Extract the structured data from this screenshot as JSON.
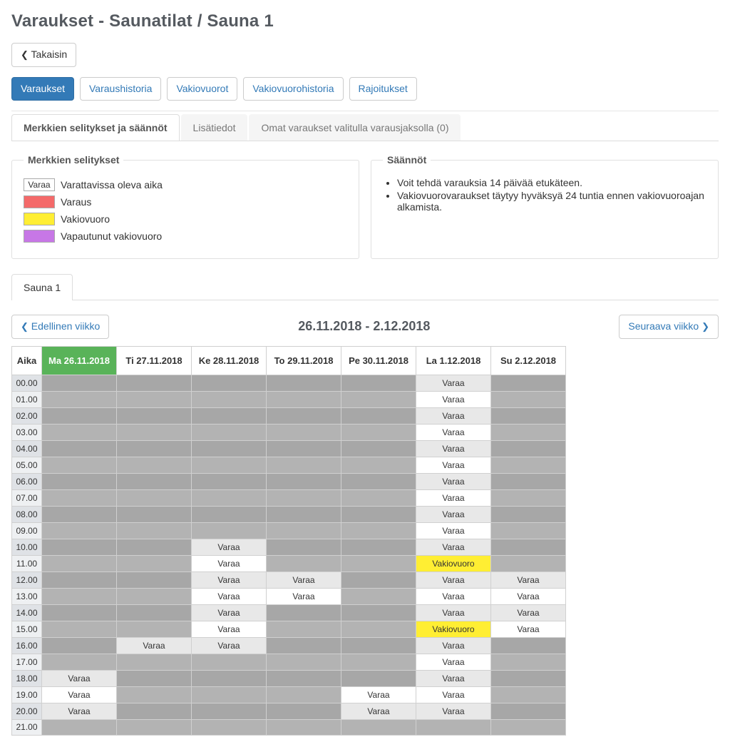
{
  "page_title": "Varaukset - Saunatilat / Sauna 1",
  "back_label": "Takaisin",
  "nav_tabs": [
    {
      "id": "varaukset",
      "label": "Varaukset",
      "active": true
    },
    {
      "id": "varaushistoria",
      "label": "Varaushistoria",
      "active": false
    },
    {
      "id": "vakiovuorot",
      "label": "Vakiovuorot",
      "active": false
    },
    {
      "id": "vakiovuorohistoria",
      "label": "Vakiovuorohistoria",
      "active": false
    },
    {
      "id": "rajoitukset",
      "label": "Rajoitukset",
      "active": false
    }
  ],
  "sub_tabs": [
    {
      "id": "legend",
      "label": "Merkkien selitykset ja säännöt",
      "active": true
    },
    {
      "id": "lisatiedot",
      "label": "Lisätiedot",
      "active": false
    },
    {
      "id": "omat",
      "label": "Omat varaukset valitulla varausjaksolla (0)",
      "active": false
    }
  ],
  "legend": {
    "title": "Merkkien selitykset",
    "items": [
      {
        "color": "#ffffff",
        "text_in_swatch": "Varaa",
        "label": "Varattavissa oleva aika"
      },
      {
        "color": "#f46a6a",
        "text_in_swatch": "",
        "label": "Varaus"
      },
      {
        "color": "#ffee33",
        "text_in_swatch": "",
        "label": "Vakiovuoro"
      },
      {
        "color": "#c777e6",
        "text_in_swatch": "",
        "label": "Vapautunut vakiovuoro"
      }
    ]
  },
  "rules": {
    "title": "Säännöt",
    "items": [
      "Voit tehdä varauksia 14 päivää etukäteen.",
      "Vakiovuorovaraukset täytyy hyväksyä 24 tuntia ennen vakiovuoroajan alkamista."
    ]
  },
  "resource_tab": "Sauna 1",
  "prev_week": "Edellinen viikko",
  "next_week": "Seuraava viikko",
  "week_range": "26.11.2018 - 2.12.2018",
  "slot_labels": {
    "avail": "Varaa",
    "vakio": "Vakiovuoro"
  },
  "colors": {
    "blocked": "#b3b3b3",
    "blocked_shaded": "#a7a7a7",
    "avail": "#ffffff",
    "avail_shaded": "#e8e8e8",
    "vakio": "#ffee33",
    "time_bg": "#eef0f2",
    "time_bg_shaded": "#dfe2e6",
    "current_day_header": "#59b359"
  },
  "schedule": {
    "time_header": "Aika",
    "days": [
      {
        "id": "mon",
        "label": "Ma 26.11.2018",
        "current": true
      },
      {
        "id": "tue",
        "label": "Ti 27.11.2018",
        "current": false
      },
      {
        "id": "wed",
        "label": "Ke 28.11.2018",
        "current": false
      },
      {
        "id": "thu",
        "label": "To 29.11.2018",
        "current": false
      },
      {
        "id": "fri",
        "label": "Pe 30.11.2018",
        "current": false
      },
      {
        "id": "sat",
        "label": "La 1.12.2018",
        "current": false
      },
      {
        "id": "sun",
        "label": "Su 2.12.2018",
        "current": false
      }
    ],
    "hours": [
      "00.00",
      "01.00",
      "02.00",
      "03.00",
      "04.00",
      "05.00",
      "06.00",
      "07.00",
      "08.00",
      "09.00",
      "10.00",
      "11.00",
      "12.00",
      "13.00",
      "14.00",
      "15.00",
      "16.00",
      "17.00",
      "18.00",
      "19.00",
      "20.00",
      "21.00"
    ],
    "cells": {
      "mon": [
        "b",
        "b",
        "b",
        "b",
        "b",
        "b",
        "b",
        "b",
        "b",
        "b",
        "b",
        "b",
        "b",
        "b",
        "b",
        "b",
        "b",
        "b",
        "a",
        "a",
        "a",
        "b"
      ],
      "tue": [
        "b",
        "b",
        "b",
        "b",
        "b",
        "b",
        "b",
        "b",
        "b",
        "b",
        "b",
        "b",
        "b",
        "b",
        "b",
        "b",
        "a",
        "b",
        "b",
        "b",
        "b",
        "b"
      ],
      "wed": [
        "b",
        "b",
        "b",
        "b",
        "b",
        "b",
        "b",
        "b",
        "b",
        "b",
        "a",
        "a",
        "a",
        "a",
        "a",
        "a",
        "a",
        "b",
        "b",
        "b",
        "b",
        "b"
      ],
      "thu": [
        "b",
        "b",
        "b",
        "b",
        "b",
        "b",
        "b",
        "b",
        "b",
        "b",
        "b",
        "b",
        "a",
        "a",
        "b",
        "b",
        "b",
        "b",
        "b",
        "b",
        "b",
        "b"
      ],
      "fri": [
        "b",
        "b",
        "b",
        "b",
        "b",
        "b",
        "b",
        "b",
        "b",
        "b",
        "b",
        "b",
        "b",
        "b",
        "b",
        "b",
        "b",
        "b",
        "b",
        "a",
        "a",
        "b"
      ],
      "sat": [
        "a",
        "a",
        "a",
        "a",
        "a",
        "a",
        "a",
        "a",
        "a",
        "a",
        "a",
        "v",
        "a",
        "a",
        "a",
        "v",
        "a",
        "a",
        "a",
        "a",
        "a",
        "b"
      ],
      "sun": [
        "b",
        "b",
        "b",
        "b",
        "b",
        "b",
        "b",
        "b",
        "b",
        "b",
        "b",
        "b",
        "a",
        "a",
        "a",
        "a",
        "b",
        "b",
        "b",
        "b",
        "b",
        "b"
      ]
    }
  }
}
